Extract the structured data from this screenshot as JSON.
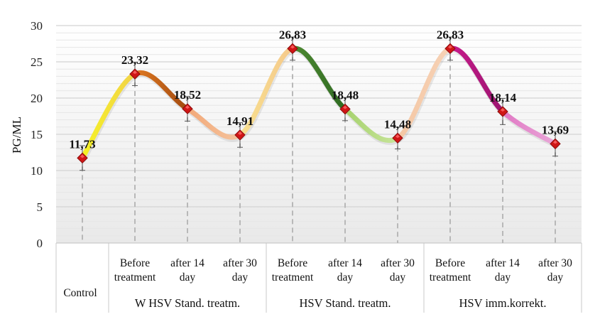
{
  "chart_data": {
    "type": "line",
    "ylabel": "PG/ML",
    "xlabel": "",
    "ylim": [
      0,
      30
    ],
    "yticks": [
      0,
      5,
      10,
      15,
      20,
      25,
      30
    ],
    "grid": "horizontal",
    "values": [
      11.73,
      23.32,
      18.52,
      14.91,
      26.83,
      18.48,
      14.48,
      26.83,
      18.14,
      13.69
    ],
    "data_labels": [
      "11,73",
      "23,32",
      "18,52",
      "14,91",
      "26,83",
      "18,48",
      "14,48",
      "26,83",
      "18,14",
      "13,69"
    ],
    "error_bars": [
      1.7,
      1.6,
      1.7,
      1.7,
      1.6,
      1.6,
      1.5,
      1.6,
      1.8,
      1.7
    ],
    "categories": [
      [
        "Control"
      ],
      [
        "Before",
        "treatment"
      ],
      [
        "after 14",
        "day"
      ],
      [
        "after 30",
        "day"
      ],
      [
        "Before",
        "treatment"
      ],
      [
        "after 14",
        "day"
      ],
      [
        "after 30",
        "day"
      ],
      [
        "Before",
        "treatment"
      ],
      [
        "after 14",
        "day"
      ],
      [
        "after 30",
        "day"
      ]
    ],
    "groups": [
      {
        "label": "W HSV Stand. treatm.",
        "from": 1,
        "to": 3
      },
      {
        "label": "HSV Stand. treatm.",
        "from": 4,
        "to": 6
      },
      {
        "label": "HSV imm.korrekt.",
        "from": 7,
        "to": 9
      }
    ],
    "segment_colors": [
      [
        "#f5f224",
        "#f2d24a"
      ],
      [
        "#e07a22",
        "#a24a10"
      ],
      [
        "#f2a878",
        "#f5c49e"
      ],
      [
        "#f8e08e",
        "#f5c98c"
      ],
      [
        "#4f8a32",
        "#2f6b22"
      ],
      [
        "#a6d26e",
        "#c8e59a"
      ],
      [
        "#f4c7a4",
        "#f7d2b6"
      ],
      [
        "#c81c8c",
        "#9c1470"
      ],
      [
        "#e178c4",
        "#e9a7d8"
      ]
    ],
    "marker_color": "#d01616"
  }
}
